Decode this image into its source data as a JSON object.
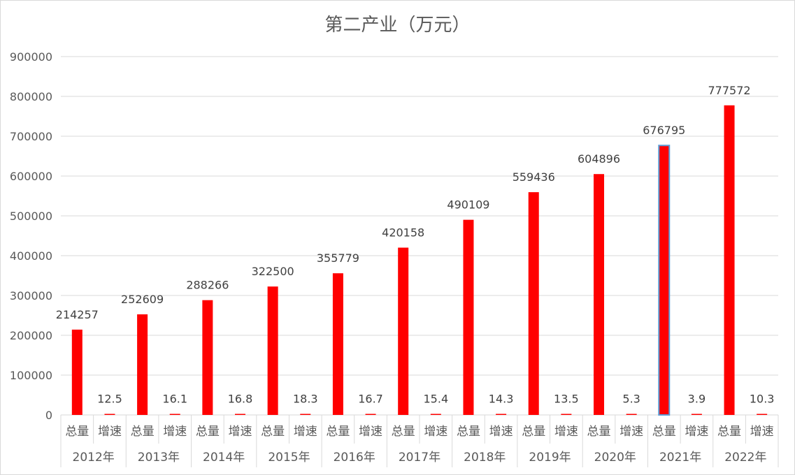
{
  "chart_data": {
    "type": "bar",
    "title": "第二产业（万元）",
    "xlabel": "",
    "ylabel": "",
    "ylim": [
      0,
      900000
    ],
    "y_ticks": [
      "0",
      "100000",
      "200000",
      "300000",
      "400000",
      "500000",
      "600000",
      "700000",
      "800000",
      "900000"
    ],
    "grid": true,
    "legend": "none",
    "bar_color": "#ff0000",
    "highlight_outline_color": "#5b9bd5",
    "groups": [
      {
        "year": "2012年",
        "categories": [
          "总量",
          "增速"
        ],
        "values": [
          214257,
          12.5
        ],
        "labels": [
          "214257",
          "12.5"
        ]
      },
      {
        "year": "2013年",
        "categories": [
          "总量",
          "增速"
        ],
        "values": [
          252609,
          16.1
        ],
        "labels": [
          "252609",
          "16.1"
        ]
      },
      {
        "year": "2014年",
        "categories": [
          "总量",
          "增速"
        ],
        "values": [
          288266,
          16.8
        ],
        "labels": [
          "288266",
          "16.8"
        ]
      },
      {
        "year": "2015年",
        "categories": [
          "总量",
          "增速"
        ],
        "values": [
          322500,
          18.3
        ],
        "labels": [
          "322500",
          "18.3"
        ]
      },
      {
        "year": "2016年",
        "categories": [
          "总量",
          "增速"
        ],
        "values": [
          355779,
          16.7
        ],
        "labels": [
          "355779",
          "16.7"
        ]
      },
      {
        "year": "2017年",
        "categories": [
          "总量",
          "增速"
        ],
        "values": [
          420158,
          15.4
        ],
        "labels": [
          "420158",
          "15.4"
        ]
      },
      {
        "year": "2018年",
        "categories": [
          "总量",
          "增速"
        ],
        "values": [
          490109,
          14.3
        ],
        "labels": [
          "490109",
          "14.3"
        ]
      },
      {
        "year": "2019年",
        "categories": [
          "总量",
          "增速"
        ],
        "values": [
          559436,
          13.5
        ],
        "labels": [
          "559436",
          "13.5"
        ]
      },
      {
        "year": "2020年",
        "categories": [
          "总量",
          "增速"
        ],
        "values": [
          604896,
          5.3
        ],
        "labels": [
          "604896",
          "5.3"
        ]
      },
      {
        "year": "2021年",
        "categories": [
          "总量",
          "增速"
        ],
        "values": [
          676795,
          3.9
        ],
        "labels": [
          "676795",
          "3.9"
        ],
        "highlighted": true
      },
      {
        "year": "2022年",
        "categories": [
          "总量",
          "增速"
        ],
        "values": [
          777572,
          10.3
        ],
        "labels": [
          "777572",
          "10.3"
        ]
      }
    ]
  }
}
